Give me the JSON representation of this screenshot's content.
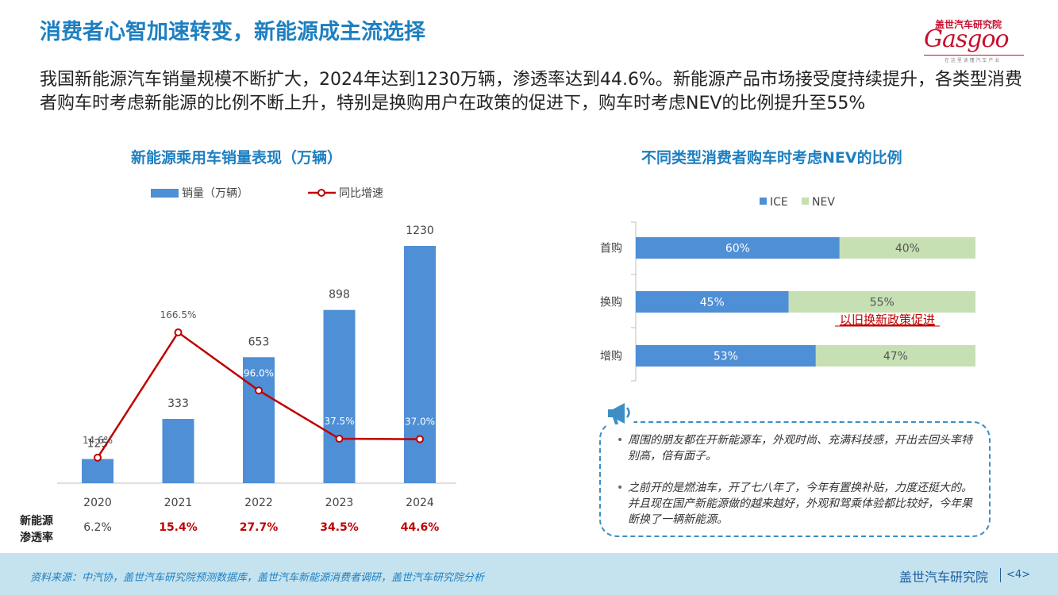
{
  "page": {
    "title": "消费者心智加速转变，新能源成主流选择",
    "intro": "我国新能源汽车销量规模不断扩大，2024年达到1230万辆，渗透率达到44.6%。新能源产品市场接受度持续提升，各类型消费者购车时考虑新能源的比例不断上升，特别是换购用户在政策的促进下，购车时考虑NEV的比例提升至55%"
  },
  "logo": {
    "top_text": "盖世汽车研究院",
    "wordmark": "Gasgoo",
    "tagline": "在 这 里 读 懂 汽 车 产 业"
  },
  "left_chart": {
    "title": "新能源乘用车销量表现（万辆）",
    "legend_bar": "销量（万辆）",
    "legend_line": "同比增速",
    "penetration_label_line1": "新能源",
    "penetration_label_line2": "渗透率",
    "penetration": [
      "6.2%",
      "15.4%",
      "27.7%",
      "34.5%",
      "44.6%"
    ]
  },
  "right_chart": {
    "title": "不同类型消费者购车时考虑NEV的比例",
    "legend_ice": "ICE",
    "legend_nev": "NEV",
    "annotation": "以旧换新政策促进"
  },
  "quotes": [
    "周围的朋友都在开新能源车，外观时尚、充满科技感，开出去回头率特别高，倍有面子。",
    "之前开的是燃油车，开了七八年了，今年有置换补贴，力度还挺大的。并且现在国产新能源做的越来越好，外观和驾乘体验都比较好，今年果断换了一辆新能源。"
  ],
  "footer": {
    "source": "资料来源：中汽协，盖世汽车研究院预测数据库，盖世汽车新能源消费者调研，盖世汽车研究院分析",
    "brand": "盖世汽车研究院",
    "page": "<4>"
  },
  "colors": {
    "title_blue": "#1e7fc0",
    "bar_blue": "#4e8fd6",
    "line_red": "#c00000",
    "nev_green": "#c6e0b4",
    "footer_bg": "#c5e3ef"
  },
  "chart_data": [
    {
      "type": "bar",
      "title": "新能源乘用车销量表现（万辆）",
      "categories": [
        "2020",
        "2021",
        "2022",
        "2023",
        "2024"
      ],
      "series": [
        {
          "name": "销量（万辆）",
          "type": "bar",
          "values": [
            125,
            333,
            653,
            898,
            1230
          ],
          "labels": [
            "125",
            "333",
            "653",
            "898",
            "1230"
          ]
        },
        {
          "name": "同比增速",
          "type": "line",
          "values": [
            14.6,
            166.5,
            96.0,
            37.5,
            37.0
          ],
          "labels": [
            "14.6%",
            "166.5%",
            "96.0%",
            "37.5%",
            "37.0%"
          ]
        }
      ],
      "legend": "top"
    },
    {
      "type": "bar",
      "orientation": "horizontal-stacked-100",
      "title": "不同类型消费者购车时考虑NEV的比例",
      "categories": [
        "首购",
        "换购",
        "增购"
      ],
      "series": [
        {
          "name": "ICE",
          "values": [
            60,
            45,
            53
          ],
          "labels": [
            "60%",
            "45%",
            "53%"
          ]
        },
        {
          "name": "NEV",
          "values": [
            40,
            55,
            47
          ],
          "labels": [
            "40%",
            "55%",
            "47%"
          ]
        }
      ],
      "legend": "top"
    }
  ]
}
